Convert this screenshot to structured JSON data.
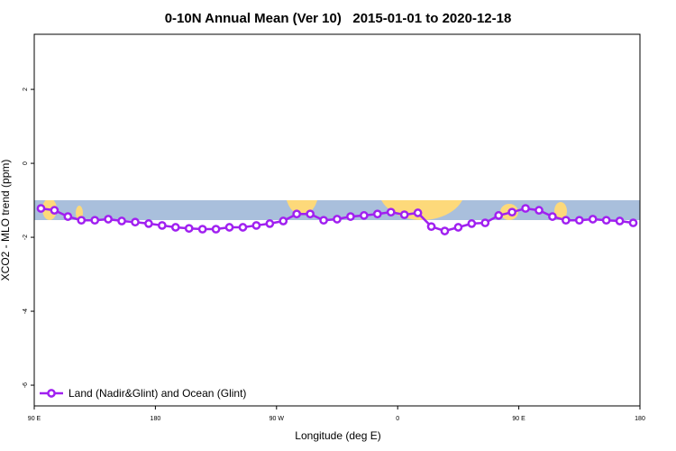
{
  "chart_data": {
    "type": "line",
    "title": "0-10N Annual Mean (Ver 10)   2015-01-01 to 2020-12-18",
    "x_label": "Longitude (deg E)",
    "y_label": "XCO2 - MLO trend (ppm)",
    "x": [
      95,
      105,
      115,
      125,
      135,
      145,
      155,
      165,
      175,
      185,
      195,
      205,
      215,
      225,
      235,
      245,
      255,
      265,
      275,
      285,
      295,
      305,
      315,
      325,
      335,
      345,
      355,
      365,
      375,
      385,
      395,
      405,
      415,
      425,
      435,
      445,
      455,
      465,
      475,
      485,
      495,
      505,
      515,
      525,
      535
    ],
    "series": [
      {
        "name": "Land (Nadir&Glint) and Ocean (Glint)",
        "color": "#a020f0",
        "values": [
          -1.22,
          -1.27,
          -1.44,
          -1.54,
          -1.54,
          -1.51,
          -1.56,
          -1.59,
          -1.63,
          -1.68,
          -1.73,
          -1.76,
          -1.78,
          -1.78,
          -1.73,
          -1.73,
          -1.68,
          -1.63,
          -1.56,
          -1.37,
          -1.37,
          -1.54,
          -1.51,
          -1.44,
          -1.41,
          -1.37,
          -1.32,
          -1.39,
          -1.34,
          -1.71,
          -1.83,
          -1.73,
          -1.63,
          -1.61,
          -1.41,
          -1.32,
          -1.22,
          -1.27,
          -1.44,
          -1.54,
          -1.54,
          -1.51,
          -1.54,
          -1.56,
          -1.61
        ]
      }
    ],
    "xlim": [
      90,
      540
    ],
    "xticks": [
      {
        "value": 90,
        "label": "90 E"
      },
      180,
      {
        "value": 270,
        "label": "90 W"
      },
      {
        "value": 360,
        "label": "0"
      },
      {
        "value": 450,
        "label": "90 E"
      },
      {
        "value": 540,
        "label": "180"
      }
    ],
    "ylim": [
      -6.56,
      3.49
    ],
    "yticks": [
      2,
      0,
      -2,
      -4,
      -6
    ],
    "legend": "bottom-left"
  }
}
